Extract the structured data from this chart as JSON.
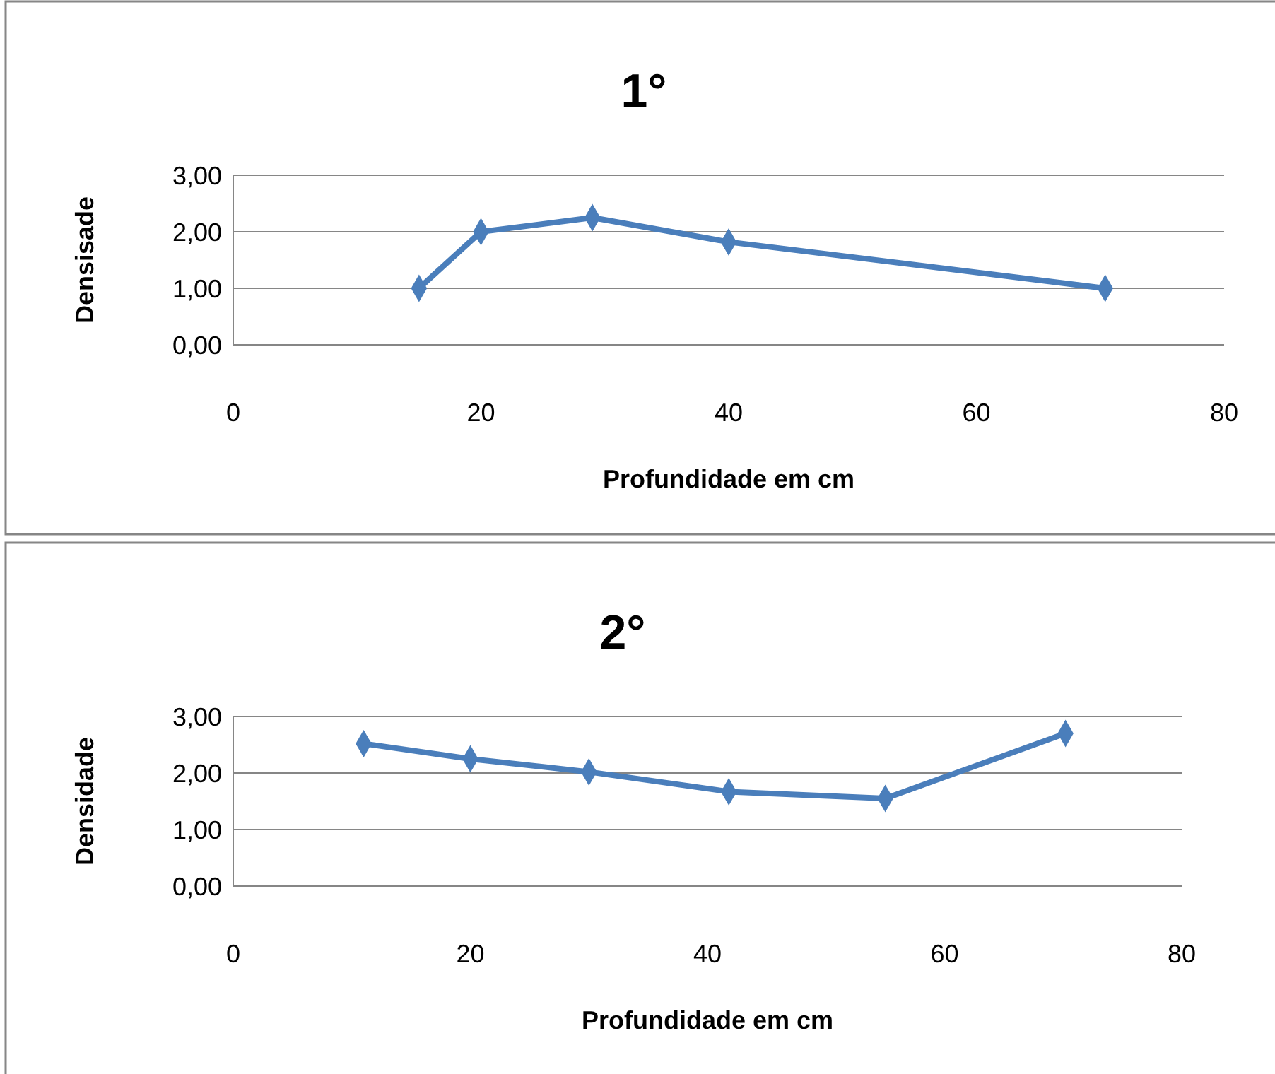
{
  "chart_data": [
    {
      "type": "line",
      "title": "1°",
      "xlabel": "Profundidade em cm",
      "ylabel": "Densisade",
      "x": [
        15,
        20,
        29,
        40,
        70.4
      ],
      "series": [
        {
          "color": "#4a7ebb",
          "values": [
            1.0,
            2.0,
            2.25,
            1.82,
            1.0
          ]
        }
      ],
      "xlim": [
        0,
        80
      ],
      "xticks": [
        0,
        20,
        40,
        60,
        80
      ],
      "ylim": [
        0,
        3
      ],
      "yticks": [
        {
          "value": 0,
          "label": "0,00"
        },
        {
          "value": 1,
          "label": "1,00"
        },
        {
          "value": 2,
          "label": "2,00"
        },
        {
          "value": 3,
          "label": "3,00"
        }
      ],
      "grid": "y",
      "marker": "diamond",
      "line_style": "solid"
    },
    {
      "type": "line",
      "title": "2°",
      "xlabel": "Profundidade em cm",
      "ylabel": "Densidade",
      "x": [
        11,
        20,
        30,
        41.8,
        55,
        70.2
      ],
      "series": [
        {
          "color": "#4a7ebb",
          "values": [
            2.52,
            2.25,
            2.02,
            1.67,
            1.55,
            2.7
          ]
        }
      ],
      "xlim": [
        0,
        80
      ],
      "xticks": [
        0,
        20,
        40,
        60,
        80
      ],
      "ylim": [
        0,
        3
      ],
      "yticks": [
        {
          "value": 0,
          "label": "0,00"
        },
        {
          "value": 1,
          "label": "1,00"
        },
        {
          "value": 2,
          "label": "2,00"
        },
        {
          "value": 3,
          "label": "3,00"
        }
      ],
      "grid": "y",
      "marker": "diamond",
      "line_style": "solid"
    }
  ]
}
